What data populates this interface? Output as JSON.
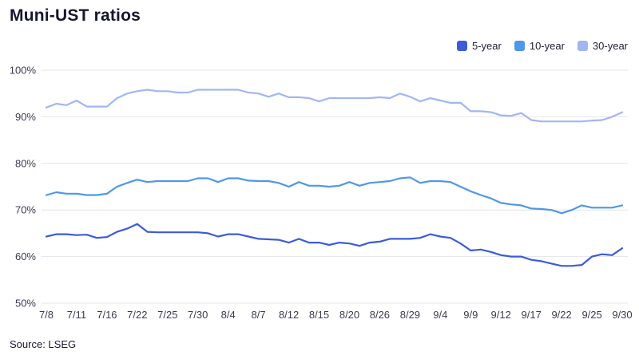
{
  "chart_data": {
    "type": "line",
    "title": "Muni-UST ratios",
    "xlabel": "",
    "ylabel": "",
    "ylim": [
      50,
      100
    ],
    "y_ticks": [
      100,
      90,
      80,
      70,
      60,
      50
    ],
    "y_tick_suffix": "%",
    "grid": "horizontal",
    "legend_position": "top-right",
    "x_tick_labels": [
      "7/8",
      "7/11",
      "7/16",
      "7/22",
      "7/25",
      "7/30",
      "8/4",
      "8/7",
      "8/12",
      "8/15",
      "8/20",
      "8/26",
      "8/29",
      "9/4",
      "9/9",
      "9/12",
      "9/17",
      "9/22",
      "9/25",
      "9/30"
    ],
    "x_tick_indices": [
      0,
      3,
      6,
      9,
      12,
      15,
      18,
      21,
      24,
      27,
      30,
      33,
      36,
      39,
      42,
      45,
      48,
      51,
      54,
      57
    ],
    "series": [
      {
        "name": "5-year",
        "color": "#3D5BD8",
        "values": [
          64.3,
          64.8,
          64.8,
          64.6,
          64.7,
          64.0,
          64.2,
          65.3,
          66.0,
          67.0,
          65.3,
          65.2,
          65.2,
          65.2,
          65.2,
          65.2,
          65.0,
          64.3,
          64.8,
          64.8,
          64.3,
          63.8,
          63.7,
          63.6,
          63.0,
          63.8,
          63.0,
          63.0,
          62.5,
          63.0,
          62.8,
          62.3,
          63.0,
          63.2,
          63.8,
          63.8,
          63.8,
          64.0,
          64.8,
          64.3,
          64.0,
          62.8,
          61.3,
          61.5,
          61.0,
          60.3,
          60.0,
          60.0,
          59.3,
          59.0,
          58.5,
          58.0,
          58.0,
          58.2,
          60.0,
          60.5,
          60.3,
          61.8
        ]
      },
      {
        "name": "10-year",
        "color": "#4F97E8",
        "values": [
          73.2,
          73.8,
          73.5,
          73.5,
          73.2,
          73.2,
          73.5,
          75.0,
          75.8,
          76.5,
          76.0,
          76.2,
          76.2,
          76.2,
          76.2,
          76.8,
          76.8,
          76.0,
          76.8,
          76.8,
          76.3,
          76.2,
          76.2,
          75.8,
          75.0,
          76.0,
          75.2,
          75.2,
          75.0,
          75.2,
          76.0,
          75.2,
          75.8,
          76.0,
          76.2,
          76.8,
          77.0,
          75.8,
          76.2,
          76.2,
          76.0,
          75.0,
          74.0,
          73.2,
          72.5,
          71.5,
          71.2,
          71.0,
          70.3,
          70.2,
          70.0,
          69.3,
          70.0,
          71.0,
          70.5,
          70.5,
          70.5,
          71.0
        ]
      },
      {
        "name": "30-year",
        "color": "#A2B6F2",
        "values": [
          92.0,
          92.8,
          92.5,
          93.5,
          92.2,
          92.2,
          92.2,
          94.0,
          95.0,
          95.5,
          95.8,
          95.5,
          95.5,
          95.2,
          95.2,
          95.8,
          95.8,
          95.8,
          95.8,
          95.8,
          95.2,
          95.0,
          94.3,
          95.0,
          94.2,
          94.2,
          94.0,
          93.3,
          94.0,
          94.0,
          94.0,
          94.0,
          94.0,
          94.2,
          94.0,
          95.0,
          94.3,
          93.3,
          94.0,
          93.5,
          93.0,
          93.0,
          91.2,
          91.2,
          91.0,
          90.3,
          90.2,
          90.8,
          89.3,
          89.0,
          89.0,
          89.0,
          89.0,
          89.0,
          89.2,
          89.3,
          90.0,
          91.0
        ]
      }
    ]
  },
  "footer": {
    "source": "Source: LSEG"
  }
}
